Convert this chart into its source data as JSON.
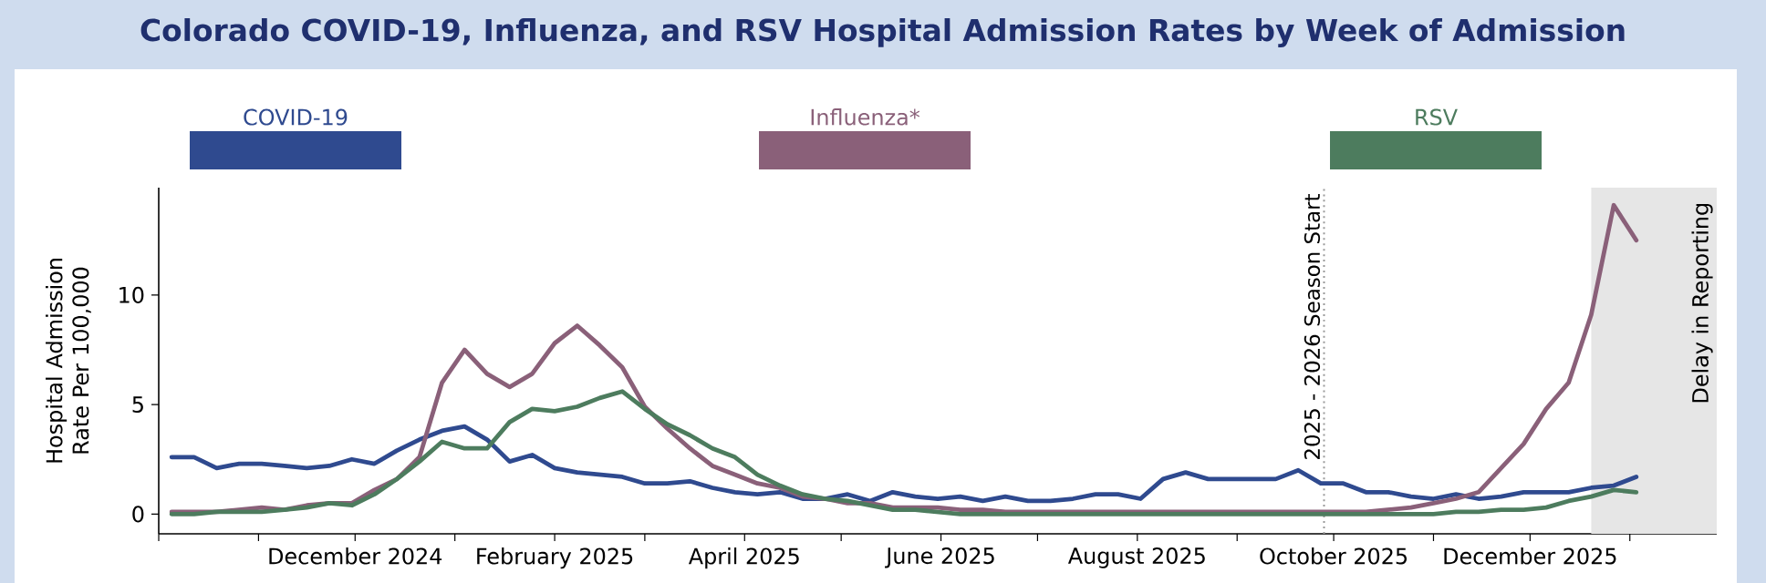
{
  "chart_data": {
    "type": "line",
    "title": "Colorado COVID-19, Influenza, and RSV Hospital Admission Rates by Week of Admission",
    "ylabel": "Hospital Admission Rate Per 100,000",
    "x": [
      "2024-10-05",
      "2024-10-12",
      "2024-10-19",
      "2024-10-26",
      "2024-11-02",
      "2024-11-09",
      "2024-11-16",
      "2024-11-23",
      "2024-11-30",
      "2024-12-07",
      "2024-12-14",
      "2024-12-21",
      "2024-12-28",
      "2025-01-04",
      "2025-01-11",
      "2025-01-18",
      "2025-01-25",
      "2025-02-01",
      "2025-02-08",
      "2025-02-15",
      "2025-02-22",
      "2025-03-01",
      "2025-03-08",
      "2025-03-15",
      "2025-03-22",
      "2025-03-29",
      "2025-04-05",
      "2025-04-12",
      "2025-04-19",
      "2025-04-26",
      "2025-05-03",
      "2025-05-10",
      "2025-05-17",
      "2025-05-24",
      "2025-05-31",
      "2025-06-07",
      "2025-06-14",
      "2025-06-21",
      "2025-06-28",
      "2025-07-05",
      "2025-07-12",
      "2025-07-19",
      "2025-07-26",
      "2025-08-02",
      "2025-08-09",
      "2025-08-16",
      "2025-08-23",
      "2025-08-30",
      "2025-09-06",
      "2025-09-13",
      "2025-09-20",
      "2025-09-27",
      "2025-10-04",
      "2025-10-11",
      "2025-10-18",
      "2025-10-25",
      "2025-11-01",
      "2025-11-08",
      "2025-11-15",
      "2025-11-22",
      "2025-11-29",
      "2025-12-06",
      "2025-12-13",
      "2025-12-20",
      "2025-12-27",
      "2026-01-03"
    ],
    "series": [
      {
        "name": "COVID-19",
        "color": "#2f4a8f",
        "values": [
          2.6,
          2.6,
          2.1,
          2.3,
          2.3,
          2.2,
          2.1,
          2.2,
          2.5,
          2.3,
          2.9,
          3.4,
          3.8,
          4.0,
          3.4,
          2.4,
          2.7,
          2.1,
          1.9,
          1.8,
          1.7,
          1.4,
          1.4,
          1.5,
          1.2,
          1.0,
          0.9,
          1.0,
          0.7,
          0.7,
          0.9,
          0.6,
          1.0,
          0.8,
          0.7,
          0.8,
          0.6,
          0.8,
          0.6,
          0.6,
          0.7,
          0.9,
          0.9,
          0.7,
          1.6,
          1.9,
          1.6,
          1.6,
          1.6,
          1.6,
          2.0,
          1.4,
          1.4,
          1.0,
          1.0,
          0.8,
          0.7,
          0.9,
          0.7,
          0.8,
          1.0,
          1.0,
          1.0,
          1.2,
          1.3,
          1.7
        ]
      },
      {
        "name": "Influenza*",
        "color": "#8a6079",
        "values": [
          0.1,
          0.1,
          0.1,
          0.2,
          0.3,
          0.2,
          0.4,
          0.5,
          0.5,
          1.1,
          1.6,
          2.6,
          6.0,
          7.5,
          6.4,
          5.8,
          6.4,
          7.8,
          8.6,
          7.7,
          6.7,
          4.9,
          3.9,
          3.0,
          2.2,
          1.8,
          1.4,
          1.2,
          0.8,
          0.7,
          0.5,
          0.5,
          0.3,
          0.3,
          0.3,
          0.2,
          0.2,
          0.1,
          0.1,
          0.1,
          0.1,
          0.1,
          0.1,
          0.1,
          0.1,
          0.1,
          0.1,
          0.1,
          0.1,
          0.1,
          0.1,
          0.1,
          0.1,
          0.1,
          0.2,
          0.3,
          0.5,
          0.7,
          1.0,
          2.1,
          3.2,
          4.8,
          6.0,
          9.1,
          14.1,
          12.5
        ]
      },
      {
        "name": "RSV",
        "color": "#4d7c5e",
        "values": [
          0,
          0,
          0.1,
          0.1,
          0.1,
          0.2,
          0.3,
          0.5,
          0.4,
          0.9,
          1.6,
          2.4,
          3.3,
          3.0,
          3.0,
          4.2,
          4.8,
          4.7,
          4.9,
          5.3,
          5.6,
          4.8,
          4.1,
          3.6,
          3.0,
          2.6,
          1.8,
          1.3,
          0.9,
          0.7,
          0.6,
          0.4,
          0.2,
          0.2,
          0.1,
          0.0,
          0,
          0,
          0,
          0,
          0,
          0,
          0,
          0,
          0,
          0,
          0,
          0,
          0,
          0,
          0,
          0,
          0,
          0,
          0,
          0,
          0.0,
          0.1,
          0.1,
          0.2,
          0.2,
          0.3,
          0.6,
          0.8,
          1.1,
          1.0
        ]
      }
    ],
    "xlim": [
      "2024-10-01",
      "2026-01-28"
    ],
    "xticks": [
      {
        "value": "2024-10-01",
        "label": null
      },
      {
        "value": "2024-11-01",
        "label": null
      },
      {
        "value": "2024-12-01",
        "label": "December 2024"
      },
      {
        "value": "2025-01-01",
        "label": null
      },
      {
        "value": "2025-02-01",
        "label": "February 2025"
      },
      {
        "value": "2025-03-01",
        "label": null
      },
      {
        "value": "2025-04-01",
        "label": "April 2025"
      },
      {
        "value": "2025-05-01",
        "label": null
      },
      {
        "value": "2025-06-01",
        "label": "June 2025"
      },
      {
        "value": "2025-07-01",
        "label": null
      },
      {
        "value": "2025-08-01",
        "label": "August 2025"
      },
      {
        "value": "2025-09-01",
        "label": null
      },
      {
        "value": "2025-10-01",
        "label": "October 2025"
      },
      {
        "value": "2025-11-01",
        "label": null
      },
      {
        "value": "2025-12-01",
        "label": "December 2025"
      },
      {
        "value": "2026-01-01",
        "label": null
      }
    ],
    "ylim": [
      -0.9,
      14.9
    ],
    "yticks": [
      0,
      5,
      10
    ],
    "ref_lines": [
      {
        "axis": "x",
        "value": "2025-09-28",
        "label": "2025 - 2026 Season Start",
        "color": "#999999",
        "line_style": "dotted"
      }
    ],
    "bands": [
      {
        "axis": "x",
        "from": "2025-12-20",
        "to": "2026-01-28",
        "label": "Delay in Reporting",
        "color": "#e6e6e6"
      }
    ],
    "legend": "top",
    "grid": false
  }
}
